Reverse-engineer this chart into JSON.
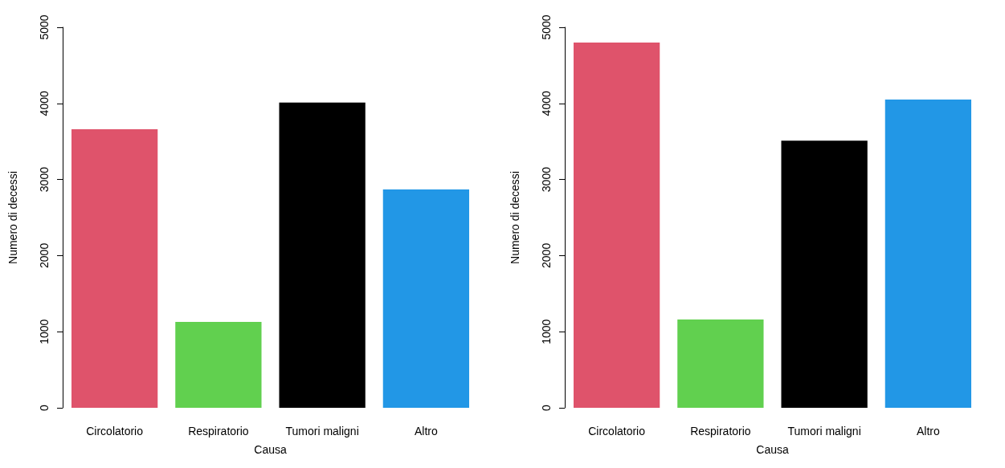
{
  "chart_data": [
    {
      "type": "bar",
      "xlabel": "Causa",
      "ylabel": "Numero di decessi",
      "categories": [
        "Circolatorio",
        "Respiratorio",
        "Tumori maligni",
        "Altro"
      ],
      "values": [
        3660,
        1130,
        4010,
        2870
      ],
      "colors": [
        "#df536b",
        "#61d04f",
        "#000000",
        "#2297e6"
      ],
      "ylim": [
        0,
        5000
      ],
      "yticks": [
        0,
        1000,
        2000,
        3000,
        4000,
        5000
      ],
      "grid": false
    },
    {
      "type": "bar",
      "xlabel": "Causa",
      "ylabel": "Numero di decessi",
      "categories": [
        "Circolatorio",
        "Respiratorio",
        "Tumori maligni",
        "Altro"
      ],
      "values": [
        4800,
        1160,
        3510,
        4050
      ],
      "colors": [
        "#df536b",
        "#61d04f",
        "#000000",
        "#2297e6"
      ],
      "ylim": [
        0,
        5000
      ],
      "yticks": [
        0,
        1000,
        2000,
        3000,
        4000,
        5000
      ],
      "grid": false
    }
  ]
}
